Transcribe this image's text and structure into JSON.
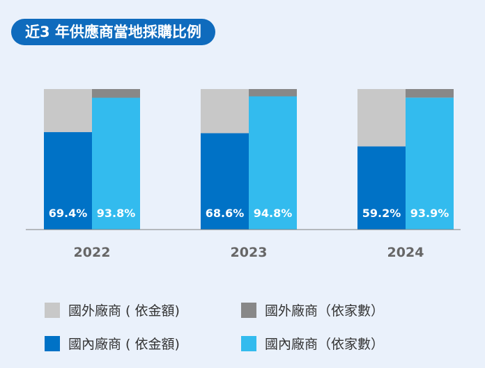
{
  "colors": {
    "background": "#eaf1fb",
    "title_bg": "#0f6bbd",
    "foreign_amount": "#c8c8c8",
    "foreign_count": "#888888",
    "domestic_amount": "#0072c6",
    "domestic_count": "#33bbee",
    "axis": "#7f7f7f",
    "year_text": "#666666"
  },
  "chart_data": {
    "type": "bar",
    "stacked": true,
    "title": "近3 年供應商當地採購比例",
    "categories": [
      "2022",
      "2023",
      "2024"
    ],
    "ylim": [
      0,
      100
    ],
    "series": [
      {
        "name": "國內廠商 ( 依金額)",
        "group": "amount",
        "values": [
          69.4,
          68.6,
          59.2
        ],
        "labels": [
          "69.4%",
          "68.6%",
          "59.2%"
        ]
      },
      {
        "name": "國外廠商 ( 依金額)",
        "group": "amount",
        "values": [
          30.6,
          31.4,
          40.8
        ]
      },
      {
        "name": "國內廠商（依家數）",
        "group": "count",
        "values": [
          93.8,
          94.8,
          93.9
        ],
        "labels": [
          "93.8%",
          "94.8%",
          "93.9%"
        ]
      },
      {
        "name": "國外廠商（依家數）",
        "group": "count",
        "values": [
          6.2,
          5.2,
          6.1
        ]
      }
    ],
    "legend": [
      {
        "name": "國外廠商 ( 依金額)",
        "color": "#c8c8c8"
      },
      {
        "name": "國外廠商（依家數）",
        "color": "#888888"
      },
      {
        "name": "國內廠商 ( 依金額)",
        "color": "#0072c6"
      },
      {
        "name": "國內廠商（依家數）",
        "color": "#33bbee"
      }
    ],
    "legend_position": "bottom",
    "grid": false
  }
}
